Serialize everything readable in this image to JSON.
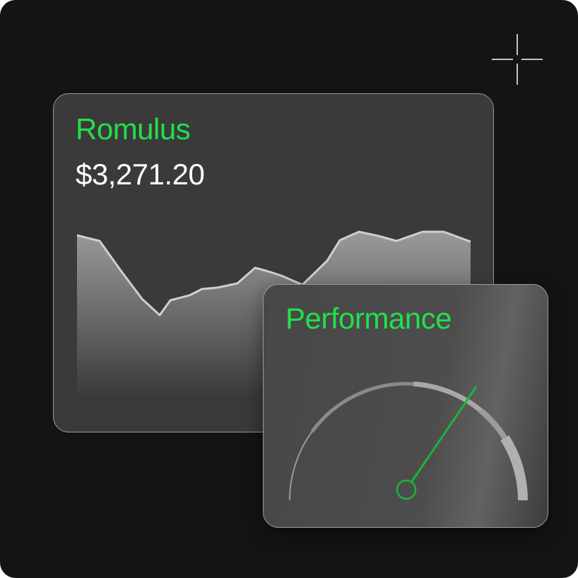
{
  "app": {
    "background": "#141414",
    "accent": "#22e04a",
    "needle_color": "#1db33a"
  },
  "asset_card": {
    "title": "Romulus",
    "price": "$3,271.20"
  },
  "performance_card": {
    "title": "Performance",
    "gauge_value": 0.69
  },
  "icons": {
    "corner": "crosshair-icon"
  }
}
